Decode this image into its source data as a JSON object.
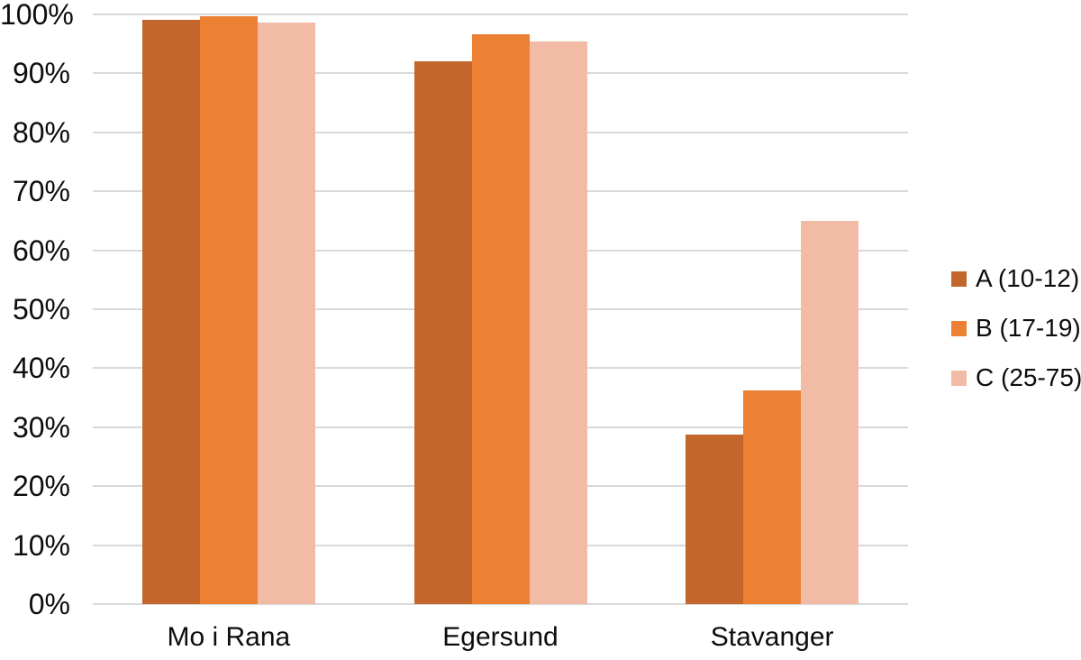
{
  "chart_data": {
    "type": "bar",
    "title": "",
    "xlabel": "",
    "ylabel": "",
    "categories": [
      "Mo i Rana",
      "Egersund",
      "Stavanger"
    ],
    "series": [
      {
        "name": "A (10-12)",
        "color": "#C2662B",
        "values": [
          99.1,
          92.0,
          28.8
        ]
      },
      {
        "name": "B (17-19)",
        "color": "#EC8033",
        "values": [
          99.7,
          96.6,
          36.2
        ]
      },
      {
        "name": "C (25-75)",
        "color": "#F2BBA5",
        "values": [
          98.6,
          95.4,
          65.0
        ]
      }
    ],
    "y_ticks": [
      0,
      10,
      20,
      30,
      40,
      50,
      60,
      70,
      80,
      90,
      100
    ],
    "y_tick_suffix": "%",
    "ylim": [
      0,
      100
    ],
    "grid": true,
    "legend_position": "right"
  },
  "colors": {
    "background": "#FFFFFF",
    "gridline": "#D9D9D9",
    "axis_line": "#D9D9D9",
    "text": "#0D0D0D"
  }
}
